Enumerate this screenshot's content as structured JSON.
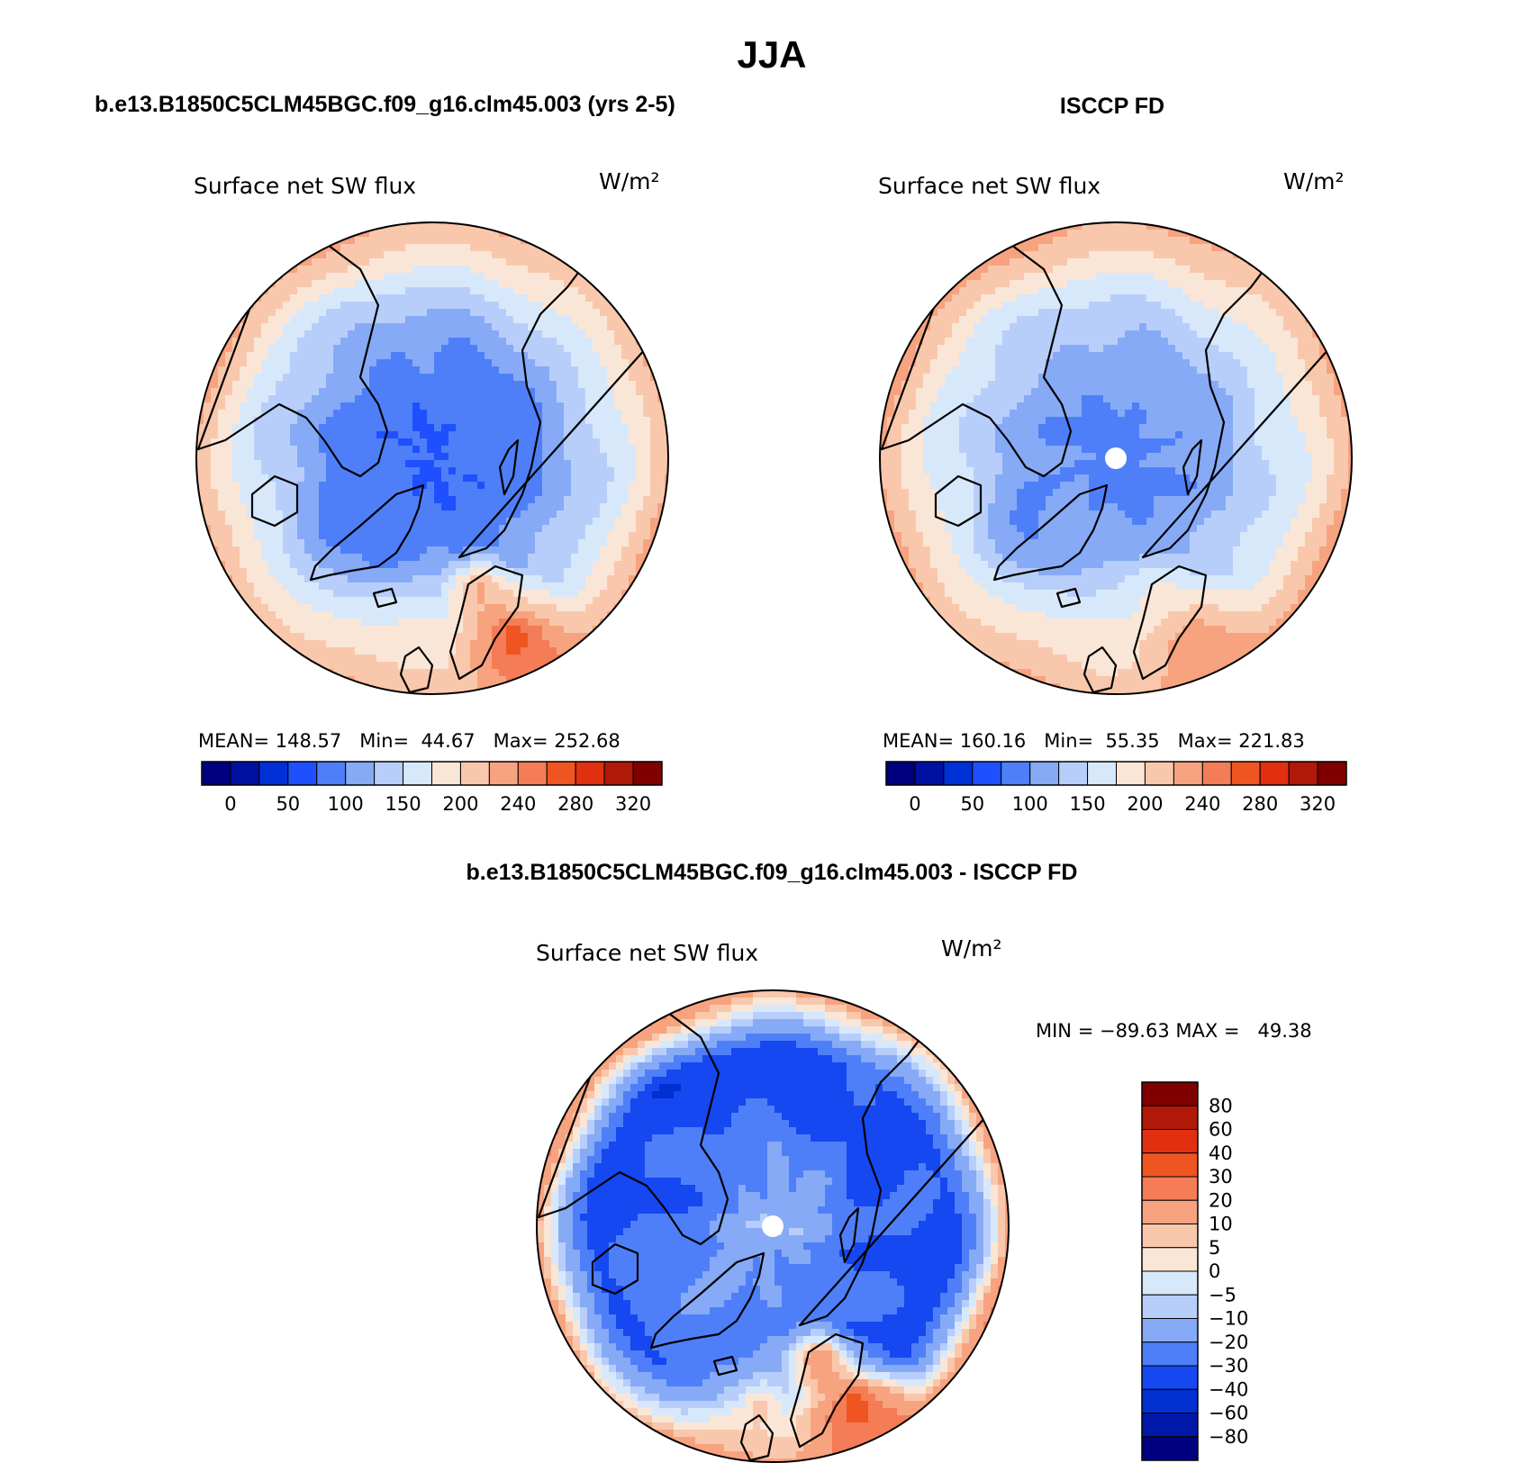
{
  "chart_data": [
    {
      "type": "heatmap",
      "projection": "north polar stereographic",
      "case_title": "b.e13.B1850C5CLM45BGC.f09_g16.clm45.003 (yrs 2-5)",
      "title": "Surface net SW flux",
      "units": "W/m²",
      "stats": {
        "mean": "148.57",
        "min": "44.67",
        "max": "252.68"
      },
      "colorbar_ticks": [
        "0",
        "50",
        "100",
        "150",
        "200",
        "240",
        "280",
        "320"
      ],
      "field": {
        "pole": 45,
        "ring_mid": 70,
        "ring_outer": 130,
        "rim": 200,
        "atlantic_rim": 180,
        "europe_rim": 250,
        "scandinavia": 250,
        "greenland": 70
      }
    },
    {
      "type": "heatmap",
      "projection": "north polar stereographic",
      "case_title": "ISCCP FD",
      "title": "Surface net SW flux",
      "units": "W/m²",
      "stats": {
        "mean": "160.16",
        "min": "55.35",
        "max": "221.83"
      },
      "colorbar_ticks": [
        "0",
        "50",
        "100",
        "150",
        "200",
        "240",
        "280",
        "320"
      ],
      "field": {
        "pole": 60,
        "ring_mid": 90,
        "ring_outer": 140,
        "rim": 205,
        "atlantic_rim": 170,
        "europe_rim": 215,
        "scandinavia": 175,
        "greenland": 75
      }
    },
    {
      "type": "heatmap",
      "projection": "north polar stereographic",
      "case_title": "b.e13.B1850C5CLM45BGC.f09_g16.clm45.003 - ISCCP FD",
      "title": "Surface net SW flux",
      "units": "W/m²",
      "stats_text": "MIN = −89.63 MAX =   49.38",
      "colorbar_ticks": [
        "80",
        "60",
        "40",
        "30",
        "20",
        "10",
        "5",
        "0",
        "−5",
        "−10",
        "−20",
        "−30",
        "−40",
        "−60",
        "−80"
      ],
      "field": {
        "pole": -10,
        "ring_mid": -30,
        "ring_outer": -35,
        "rim": 15,
        "atlantic_rim": 20,
        "europe_rim": 35,
        "scandinavia": 40,
        "greenland": -15
      }
    }
  ],
  "figure_title": "JJA",
  "colors": {
    "abs_levels": [
      "#00007f",
      "#0010a0",
      "#0030d8",
      "#1e50ff",
      "#4f7ff8",
      "#86aaf6",
      "#b8cefa",
      "#d8e8fb",
      "#fae6d6",
      "#f9c8ac",
      "#f7a37f",
      "#f47c56",
      "#ef5520",
      "#e03010",
      "#b01808",
      "#800000"
    ],
    "diff_levels": [
      "#000080",
      "#0018a8",
      "#0030d0",
      "#1548f0",
      "#4f7ff8",
      "#86aaf6",
      "#b8cefa",
      "#d8e8fb",
      "#fae6d6",
      "#f9c8ac",
      "#f7a37f",
      "#f47c56",
      "#ef5520",
      "#e03010",
      "#b01808",
      "#800000"
    ]
  }
}
